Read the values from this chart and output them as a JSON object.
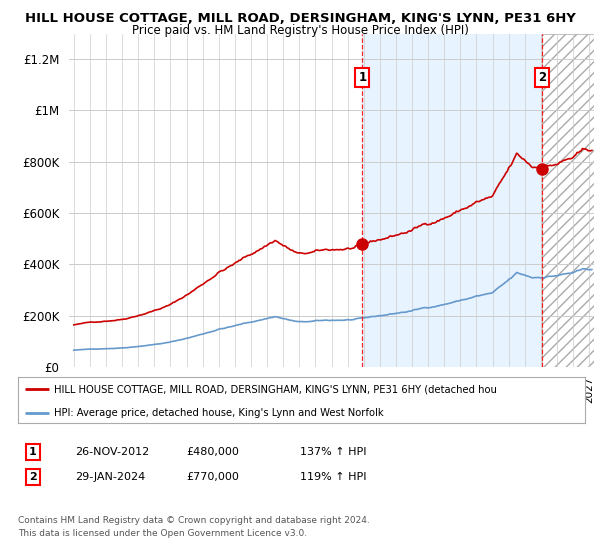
{
  "title1": "HILL HOUSE COTTAGE, MILL ROAD, DERSINGHAM, KING'S LYNN, PE31 6HY",
  "title2": "Price paid vs. HM Land Registry's House Price Index (HPI)",
  "red_line_label": "HILL HOUSE COTTAGE, MILL ROAD, DERSINGHAM, KING'S LYNN, PE31 6HY (detached hou",
  "blue_line_label": "HPI: Average price, detached house, King's Lynn and West Norfolk",
  "annotation1_date": "26-NOV-2012",
  "annotation1_price": "£480,000",
  "annotation1_hpi": "137% ↑ HPI",
  "annotation2_date": "29-JAN-2024",
  "annotation2_price": "£770,000",
  "annotation2_hpi": "119% ↑ HPI",
  "footer1": "Contains HM Land Registry data © Crown copyright and database right 2024.",
  "footer2": "This data is licensed under the Open Government Licence v3.0.",
  "ylim": [
    0,
    1300000
  ],
  "yticks": [
    0,
    200000,
    400000,
    600000,
    800000,
    1000000,
    1200000
  ],
  "ytick_labels": [
    "£0",
    "£200K",
    "£400K",
    "£600K",
    "£800K",
    "£1M",
    "£1.2M"
  ],
  "sale1_x": 2012.92,
  "sale1_y": 480000,
  "sale2_x": 2024.08,
  "sale2_y": 770000,
  "xmin": 1994.7,
  "xmax": 2027.3,
  "bg_color": "#ffffff",
  "grid_color": "#cccccc",
  "red_color": "#cc0000",
  "blue_color": "#6699cc",
  "shade_between_color": "#ddeeff",
  "shade_right_color": "#e8e8e8"
}
